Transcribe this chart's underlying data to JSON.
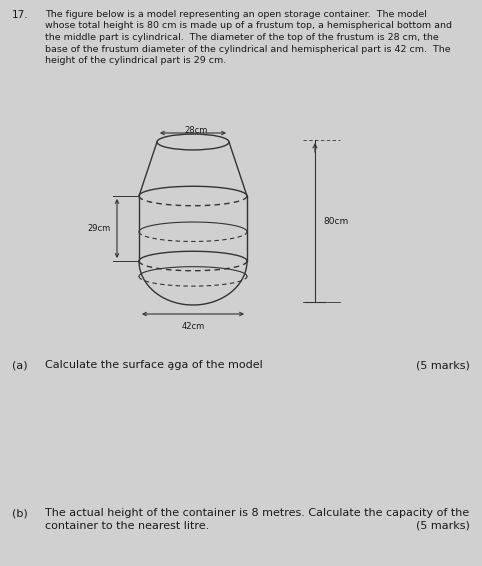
{
  "question_number": "17.",
  "question_text_line1": "The figure below is a model representing an open storage container.  The model",
  "question_text_line2": "whose total height is 80 cm is made up of a frustum top, a hemispherical bottom and",
  "question_text_line3": "the middle part is cylindrical.  The diameter of the top of the frustum is 28 cm, the",
  "question_text_line4": "base of the frustum diameter of the cylindrical and hemispherical part is 42 cm.  The",
  "question_text_line5": "height of the cylindrical part is 29 cm.",
  "background_color": "#d0d0d0",
  "text_color": "#1a1a1a",
  "line_color": "#333333",
  "label_28cm": "28cm",
  "label_42cm": "42cm",
  "label_29cm": "29cm",
  "label_80cm": "80cm",
  "part_a_label": "(a)",
  "part_a_text": "Calculate the surface a̧ga of the model",
  "part_a_marks": "(5 marks)",
  "part_b_label": "(b)",
  "part_b_text1": "The actual height of the container is 8 metres. Calculate the capacity of the",
  "part_b_text2": "container to the nearest litre.",
  "part_b_marks": "(5 marks)",
  "fig_width": 4.82,
  "fig_height": 5.66,
  "dpi": 100
}
